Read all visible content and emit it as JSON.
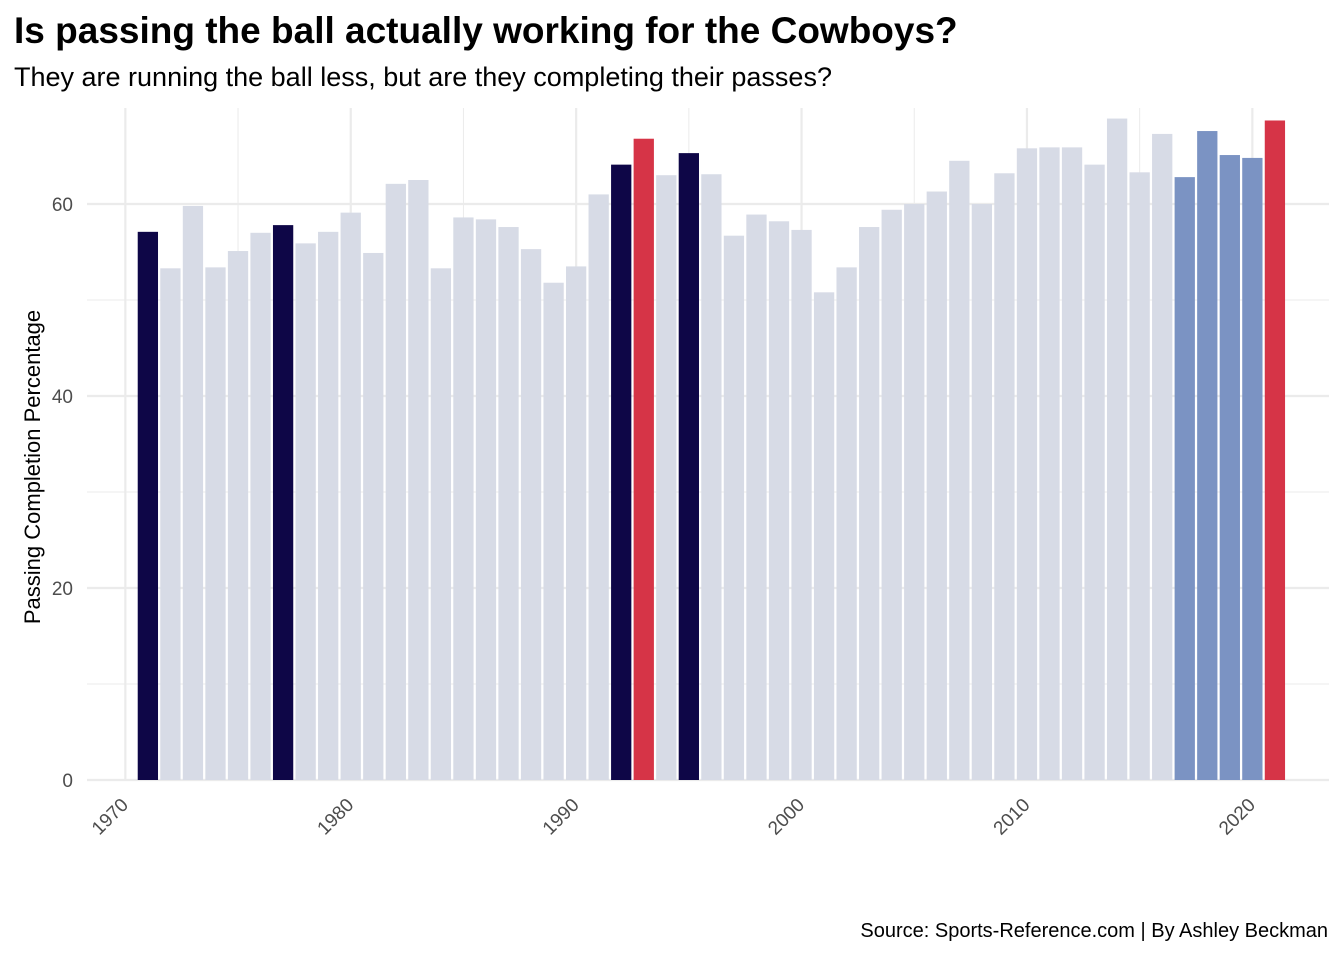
{
  "chart_data": {
    "type": "bar",
    "title": "Is passing the ball actually working for the Cowboys?",
    "subtitle": "They are running the ball less, but are they completing their passes?",
    "caption": "Source: Sports-Reference.com | By Ashley Beckman",
    "xlabel": "",
    "ylabel": "Passing Completion Percentage",
    "xlim": [
      1968.3,
      2023.4
    ],
    "ylim": [
      0,
      70
    ],
    "x_ticks": [
      "1970",
      "1980",
      "1990",
      "2000",
      "2010",
      "2020"
    ],
    "y_ticks": [
      "0",
      "20",
      "40",
      "60"
    ],
    "grid": true,
    "legend": "none",
    "colors": {
      "default": "#d7dbe6",
      "highlight_dark": "#0e0647",
      "highlight_red": "#d63447",
      "highlight_blue": "#7b93c3",
      "grid": "#ebebeb"
    },
    "bars": [
      {
        "year": 1971,
        "value": 57.1,
        "color": "highlight_dark"
      },
      {
        "year": 1972,
        "value": 53.3,
        "color": "default"
      },
      {
        "year": 1973,
        "value": 59.8,
        "color": "default"
      },
      {
        "year": 1974,
        "value": 53.4,
        "color": "default"
      },
      {
        "year": 1975,
        "value": 55.1,
        "color": "default"
      },
      {
        "year": 1976,
        "value": 57.0,
        "color": "default"
      },
      {
        "year": 1977,
        "value": 57.8,
        "color": "highlight_dark"
      },
      {
        "year": 1978,
        "value": 55.9,
        "color": "default"
      },
      {
        "year": 1979,
        "value": 57.1,
        "color": "default"
      },
      {
        "year": 1980,
        "value": 59.1,
        "color": "default"
      },
      {
        "year": 1981,
        "value": 54.9,
        "color": "default"
      },
      {
        "year": 1982,
        "value": 62.1,
        "color": "default"
      },
      {
        "year": 1983,
        "value": 62.5,
        "color": "default"
      },
      {
        "year": 1984,
        "value": 53.3,
        "color": "default"
      },
      {
        "year": 1985,
        "value": 58.6,
        "color": "default"
      },
      {
        "year": 1986,
        "value": 58.4,
        "color": "default"
      },
      {
        "year": 1987,
        "value": 57.6,
        "color": "default"
      },
      {
        "year": 1988,
        "value": 55.3,
        "color": "default"
      },
      {
        "year": 1989,
        "value": 51.8,
        "color": "default"
      },
      {
        "year": 1990,
        "value": 53.5,
        "color": "default"
      },
      {
        "year": 1991,
        "value": 61.0,
        "color": "default"
      },
      {
        "year": 1992,
        "value": 64.1,
        "color": "highlight_dark"
      },
      {
        "year": 1993,
        "value": 66.8,
        "color": "highlight_red"
      },
      {
        "year": 1994,
        "value": 63.0,
        "color": "default"
      },
      {
        "year": 1995,
        "value": 65.3,
        "color": "highlight_dark"
      },
      {
        "year": 1996,
        "value": 63.1,
        "color": "default"
      },
      {
        "year": 1997,
        "value": 56.7,
        "color": "default"
      },
      {
        "year": 1998,
        "value": 58.9,
        "color": "default"
      },
      {
        "year": 1999,
        "value": 58.2,
        "color": "default"
      },
      {
        "year": 2000,
        "value": 57.3,
        "color": "default"
      },
      {
        "year": 2001,
        "value": 50.8,
        "color": "default"
      },
      {
        "year": 2002,
        "value": 53.4,
        "color": "default"
      },
      {
        "year": 2003,
        "value": 57.6,
        "color": "default"
      },
      {
        "year": 2004,
        "value": 59.4,
        "color": "default"
      },
      {
        "year": 2005,
        "value": 60.0,
        "color": "default"
      },
      {
        "year": 2006,
        "value": 61.3,
        "color": "default"
      },
      {
        "year": 2007,
        "value": 64.5,
        "color": "default"
      },
      {
        "year": 2008,
        "value": 60.0,
        "color": "default"
      },
      {
        "year": 2009,
        "value": 63.2,
        "color": "default"
      },
      {
        "year": 2010,
        "value": 65.8,
        "color": "default"
      },
      {
        "year": 2011,
        "value": 65.9,
        "color": "default"
      },
      {
        "year": 2012,
        "value": 65.9,
        "color": "default"
      },
      {
        "year": 2013,
        "value": 64.1,
        "color": "default"
      },
      {
        "year": 2014,
        "value": 68.9,
        "color": "default"
      },
      {
        "year": 2015,
        "value": 63.3,
        "color": "default"
      },
      {
        "year": 2016,
        "value": 67.3,
        "color": "default"
      },
      {
        "year": 2017,
        "value": 62.8,
        "color": "highlight_blue"
      },
      {
        "year": 2018,
        "value": 67.6,
        "color": "highlight_blue"
      },
      {
        "year": 2019,
        "value": 65.1,
        "color": "highlight_blue"
      },
      {
        "year": 2020,
        "value": 64.8,
        "color": "highlight_blue"
      },
      {
        "year": 2021,
        "value": 68.7,
        "color": "highlight_red"
      }
    ]
  }
}
